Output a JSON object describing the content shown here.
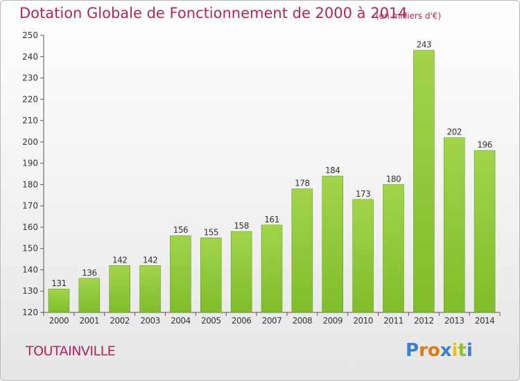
{
  "header": {
    "title": "Dotation Globale de Fonctionnement de 2000 à 2014",
    "subtitle": "(en milliers d'€)"
  },
  "place_name": "TOUTAINVILLE",
  "logo": {
    "text": "Proxiti",
    "letter_colors": [
      "#3a7fd0",
      "#e07a10",
      "#e07a10",
      "#3a7fd0",
      "#f0c010",
      "#90c030",
      "#3a7fd0"
    ]
  },
  "chart_data": {
    "type": "bar",
    "categories": [
      "2000",
      "2001",
      "2002",
      "2003",
      "2004",
      "2005",
      "2006",
      "2007",
      "2008",
      "2009",
      "2010",
      "2011",
      "2012",
      "2013",
      "2014"
    ],
    "values": [
      131,
      136,
      142,
      142,
      156,
      155,
      158,
      161,
      178,
      184,
      173,
      180,
      243,
      202,
      196
    ],
    "yticks": [
      120,
      130,
      140,
      150,
      160,
      170,
      180,
      190,
      200,
      210,
      220,
      230,
      240,
      250
    ],
    "ylim": [
      120,
      250
    ],
    "grid": false,
    "bar_color": "#7fbd2a",
    "bar_color_light": "#a2d44c"
  }
}
